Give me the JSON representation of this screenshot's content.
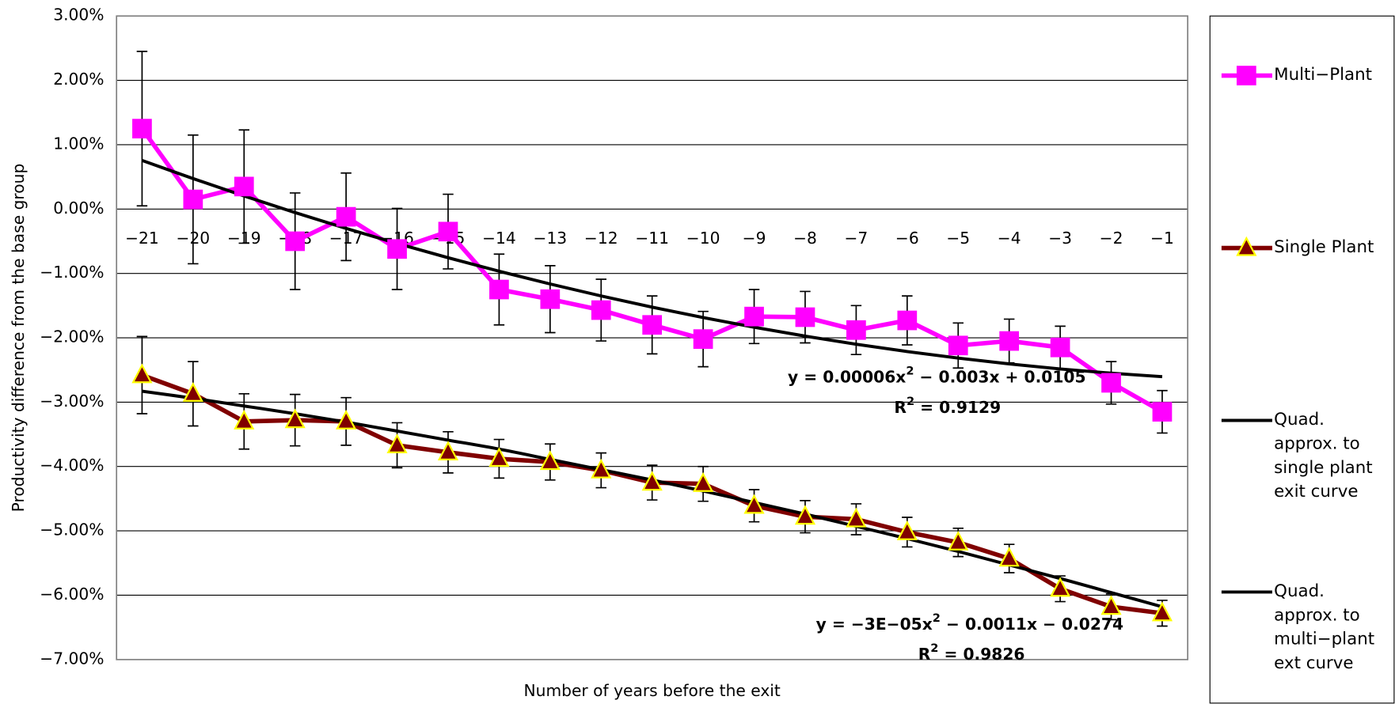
{
  "chart_data": {
    "type": "line",
    "y_axis_label": "Productivity difference from the base group",
    "x_axis_label": "Number of years before the exit",
    "categories": [
      "−21",
      "−20",
      "−19",
      "−18",
      "−17",
      "−16",
      "−15",
      "−14",
      "−13",
      "−12",
      "−11",
      "−10",
      "−9",
      "−8",
      "−7",
      "−6",
      "−5",
      "−4",
      "−3",
      "−2",
      "−1"
    ],
    "ylim": [
      -7,
      3
    ],
    "yticks": [
      {
        "value": 3,
        "label": "3.00%"
      },
      {
        "value": 2,
        "label": "2.00%"
      },
      {
        "value": 1,
        "label": "1.00%"
      },
      {
        "value": 0,
        "label": "0.00%"
      },
      {
        "value": -1,
        "label": "−1.00%"
      },
      {
        "value": -2,
        "label": "−2.00%"
      },
      {
        "value": -3,
        "label": "−3.00%"
      },
      {
        "value": -4,
        "label": "−4.00%"
      },
      {
        "value": -5,
        "label": "−5.00%"
      },
      {
        "value": -6,
        "label": "−6.00%"
      },
      {
        "value": -7,
        "label": "−7.00%"
      }
    ],
    "grid": true,
    "legend": "right",
    "series": [
      {
        "name": "Multi−Plant",
        "color": "#ff00ff",
        "marker": "square",
        "values": [
          1.25,
          0.15,
          0.35,
          -0.5,
          -0.12,
          -0.62,
          -0.35,
          -1.25,
          -1.4,
          -1.57,
          -1.8,
          -2.02,
          -1.67,
          -1.68,
          -1.88,
          -1.73,
          -2.12,
          -2.05,
          -2.15,
          -2.7,
          -3.15
        ],
        "errors": [
          1.2,
          1.0,
          0.88,
          0.75,
          0.68,
          0.63,
          0.58,
          0.55,
          0.52,
          0.48,
          0.45,
          0.43,
          0.42,
          0.4,
          0.38,
          0.38,
          0.35,
          0.34,
          0.33,
          0.33,
          0.33
        ]
      },
      {
        "name": "Single Plant",
        "color": "#800000",
        "marker": "triangle",
        "values": [
          -2.58,
          -2.87,
          -3.3,
          -3.28,
          -3.3,
          -3.67,
          -3.78,
          -3.88,
          -3.93,
          -4.06,
          -4.25,
          -4.27,
          -4.61,
          -4.78,
          -4.82,
          -5.02,
          -5.18,
          -5.43,
          -5.9,
          -6.18,
          -6.28
        ],
        "errors": [
          0.6,
          0.5,
          0.43,
          0.4,
          0.37,
          0.35,
          0.32,
          0.3,
          0.28,
          0.27,
          0.27,
          0.27,
          0.25,
          0.25,
          0.24,
          0.23,
          0.22,
          0.22,
          0.2,
          0.2,
          0.2
        ]
      },
      {
        "name": "Quad. approx. to single plant exit curve",
        "color": "#000000",
        "marker": "none",
        "values": [
          -2.83,
          -2.94,
          -3.06,
          -3.18,
          -3.31,
          -3.45,
          -3.59,
          -3.73,
          -3.89,
          -4.05,
          -4.21,
          -4.38,
          -4.56,
          -4.74,
          -4.93,
          -5.12,
          -5.32,
          -5.53,
          -5.74,
          -5.96,
          -6.18
        ]
      },
      {
        "name": "Quad. approx. to multi−plant ext curve",
        "color": "#000000",
        "marker": "none",
        "values": [
          0.756,
          0.474,
          0.204,
          -0.054,
          -0.3,
          -0.534,
          -0.756,
          -0.966,
          -1.164,
          -1.35,
          -1.524,
          -1.686,
          -1.836,
          -1.974,
          -2.1,
          -2.214,
          -2.316,
          -2.406,
          -2.484,
          -2.55,
          -2.604
        ]
      }
    ],
    "annotations": [
      {
        "text": [
          "y = 0.00006x",
          "2",
          " − 0.003x + 0.0105"
        ]
      },
      {
        "text": [
          "R",
          "2",
          " = 0.9129"
        ]
      },
      {
        "text": [
          "y = −3E−05x",
          "2",
          " − 0.0011x − 0.0274"
        ]
      },
      {
        "text": [
          "R",
          "2",
          " = 0.9826"
        ]
      }
    ]
  }
}
